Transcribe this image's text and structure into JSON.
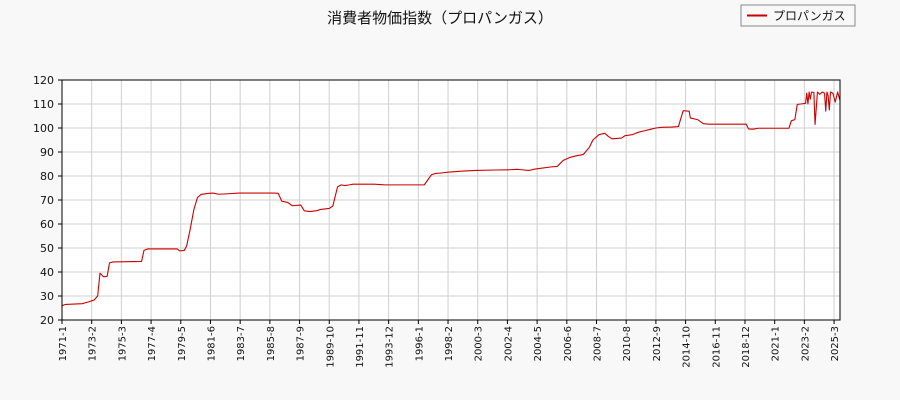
{
  "chart_data": {
    "type": "line",
    "title": "消費者物価指数（プロパンガス）",
    "xlabel": "",
    "ylabel": "",
    "ylim": [
      20,
      120
    ],
    "yticks": [
      20,
      30,
      40,
      50,
      60,
      70,
      80,
      90,
      100,
      110,
      120
    ],
    "grid": true,
    "legend_position": "top-right",
    "x_start": "1971-1",
    "x_end": "2025-8",
    "xtick_labels": [
      "1971-1",
      "1973-2",
      "1975-3",
      "1977-4",
      "1979-5",
      "1981-6",
      "1983-7",
      "1985-8",
      "1987-9",
      "1989-10",
      "1991-11",
      "1993-12",
      "1996-1",
      "1998-2",
      "2000-3",
      "2002-4",
      "2004-5",
      "2006-6",
      "2008-7",
      "2010-8",
      "2012-9",
      "2014-10",
      "2016-11",
      "2018-12",
      "2021-1",
      "2023-2",
      "2025-3"
    ],
    "series": [
      {
        "name": "プロパンガス",
        "color": "#cc0000",
        "points": [
          [
            "1971-1",
            26.0
          ],
          [
            "1971-4",
            26.5
          ],
          [
            "1972-6",
            26.8
          ],
          [
            "1972-11",
            27.5
          ],
          [
            "1973-4",
            28.3
          ],
          [
            "1973-7",
            30.0
          ],
          [
            "1973-9",
            39.5
          ],
          [
            "1973-12",
            38.0
          ],
          [
            "1974-3",
            38.2
          ],
          [
            "1974-5",
            43.8
          ],
          [
            "1974-8",
            44.2
          ],
          [
            "1976-8",
            44.4
          ],
          [
            "1976-10",
            49.0
          ],
          [
            "1977-1",
            49.6
          ],
          [
            "1978-6",
            49.6
          ],
          [
            "1979-2",
            49.6
          ],
          [
            "1979-4",
            48.8
          ],
          [
            "1979-8",
            49.0
          ],
          [
            "1979-10",
            51.0
          ],
          [
            "1980-1",
            58.0
          ],
          [
            "1980-4",
            66.0
          ],
          [
            "1980-7",
            71.0
          ],
          [
            "1980-10",
            72.3
          ],
          [
            "1981-3",
            72.7
          ],
          [
            "1981-8",
            72.9
          ],
          [
            "1982-1",
            72.4
          ],
          [
            "1982-9",
            72.6
          ],
          [
            "1983-6",
            72.9
          ],
          [
            "1984-9",
            72.9
          ],
          [
            "1985-11",
            72.9
          ],
          [
            "1986-3",
            72.8
          ],
          [
            "1986-6",
            69.5
          ],
          [
            "1986-11",
            69.0
          ],
          [
            "1987-3",
            67.6
          ],
          [
            "1987-10",
            67.9
          ],
          [
            "1988-1",
            65.5
          ],
          [
            "1988-6",
            65.2
          ],
          [
            "1988-12",
            65.6
          ],
          [
            "1989-2",
            66.0
          ],
          [
            "1989-10",
            66.5
          ],
          [
            "1990-1",
            67.5
          ],
          [
            "1990-5",
            75.5
          ],
          [
            "1990-8",
            76.3
          ],
          [
            "1990-11",
            76.0
          ],
          [
            "1991-3",
            76.3
          ],
          [
            "1991-6",
            76.6
          ],
          [
            "1992-12",
            76.6
          ],
          [
            "1993-9",
            76.3
          ],
          [
            "1995-6",
            76.3
          ],
          [
            "1996-1",
            76.3
          ],
          [
            "1996-6",
            76.3
          ],
          [
            "1996-12",
            80.5
          ],
          [
            "1997-3",
            81.0
          ],
          [
            "1997-9",
            81.3
          ],
          [
            "1998-2",
            81.6
          ],
          [
            "1999-1",
            82.0
          ],
          [
            "2000-1",
            82.3
          ],
          [
            "2001-6",
            82.5
          ],
          [
            "2002-6",
            82.6
          ],
          [
            "2002-12",
            82.8
          ],
          [
            "2003-4",
            82.6
          ],
          [
            "2003-10",
            82.3
          ],
          [
            "2004-2",
            82.8
          ],
          [
            "2004-8",
            83.2
          ],
          [
            "2005-5",
            83.8
          ],
          [
            "2005-10",
            84.0
          ],
          [
            "2006-3",
            86.5
          ],
          [
            "2006-9",
            87.8
          ],
          [
            "2007-1",
            88.3
          ],
          [
            "2007-8",
            89.0
          ],
          [
            "2008-1",
            92.0
          ],
          [
            "2008-4",
            95.0
          ],
          [
            "2008-9",
            97.2
          ],
          [
            "2009-2",
            97.8
          ],
          [
            "2009-5",
            96.5
          ],
          [
            "2009-8",
            95.5
          ],
          [
            "2010-4",
            95.8
          ],
          [
            "2010-7",
            96.8
          ],
          [
            "2011-1",
            97.2
          ],
          [
            "2011-6",
            98.2
          ],
          [
            "2011-11",
            98.8
          ],
          [
            "2012-4",
            99.4
          ],
          [
            "2012-9",
            100.0
          ],
          [
            "2013-2",
            100.3
          ],
          [
            "2013-10",
            100.4
          ],
          [
            "2014-4",
            100.6
          ],
          [
            "2014-6",
            104.0
          ],
          [
            "2014-8",
            107.2
          ],
          [
            "2015-1",
            107.0
          ],
          [
            "2015-2",
            104.2
          ],
          [
            "2015-8",
            103.5
          ],
          [
            "2016-1",
            101.8
          ],
          [
            "2016-6",
            101.6
          ],
          [
            "2017-11",
            101.6
          ],
          [
            "2019-1",
            101.6
          ],
          [
            "2019-3",
            99.6
          ],
          [
            "2019-7",
            99.5
          ],
          [
            "2019-11",
            99.9
          ],
          [
            "2021-1",
            99.9
          ],
          [
            "2022-1",
            99.9
          ],
          [
            "2022-3",
            103.0
          ],
          [
            "2022-6",
            103.5
          ],
          [
            "2022-8",
            109.8
          ],
          [
            "2022-11",
            110.0
          ],
          [
            "2023-3",
            110.3
          ],
          [
            "2023-4",
            114.5
          ],
          [
            "2023-5",
            110.0
          ],
          [
            "2023-6",
            115.0
          ],
          [
            "2023-7",
            112.0
          ],
          [
            "2023-8",
            115.0
          ],
          [
            "2023-10",
            114.8
          ],
          [
            "2023-11",
            101.5
          ],
          [
            "2024-1",
            115.0
          ],
          [
            "2024-3",
            114.0
          ],
          [
            "2024-5",
            115.0
          ],
          [
            "2024-7",
            114.5
          ],
          [
            "2024-8",
            107.0
          ],
          [
            "2024-9",
            115.0
          ],
          [
            "2024-10",
            113.5
          ],
          [
            "2024-11",
            107.5
          ],
          [
            "2024-12",
            115.0
          ],
          [
            "2025-2",
            114.5
          ],
          [
            "2025-4",
            110.8
          ],
          [
            "2025-6",
            115.0
          ],
          [
            "2025-8",
            111.5
          ]
        ]
      }
    ]
  }
}
